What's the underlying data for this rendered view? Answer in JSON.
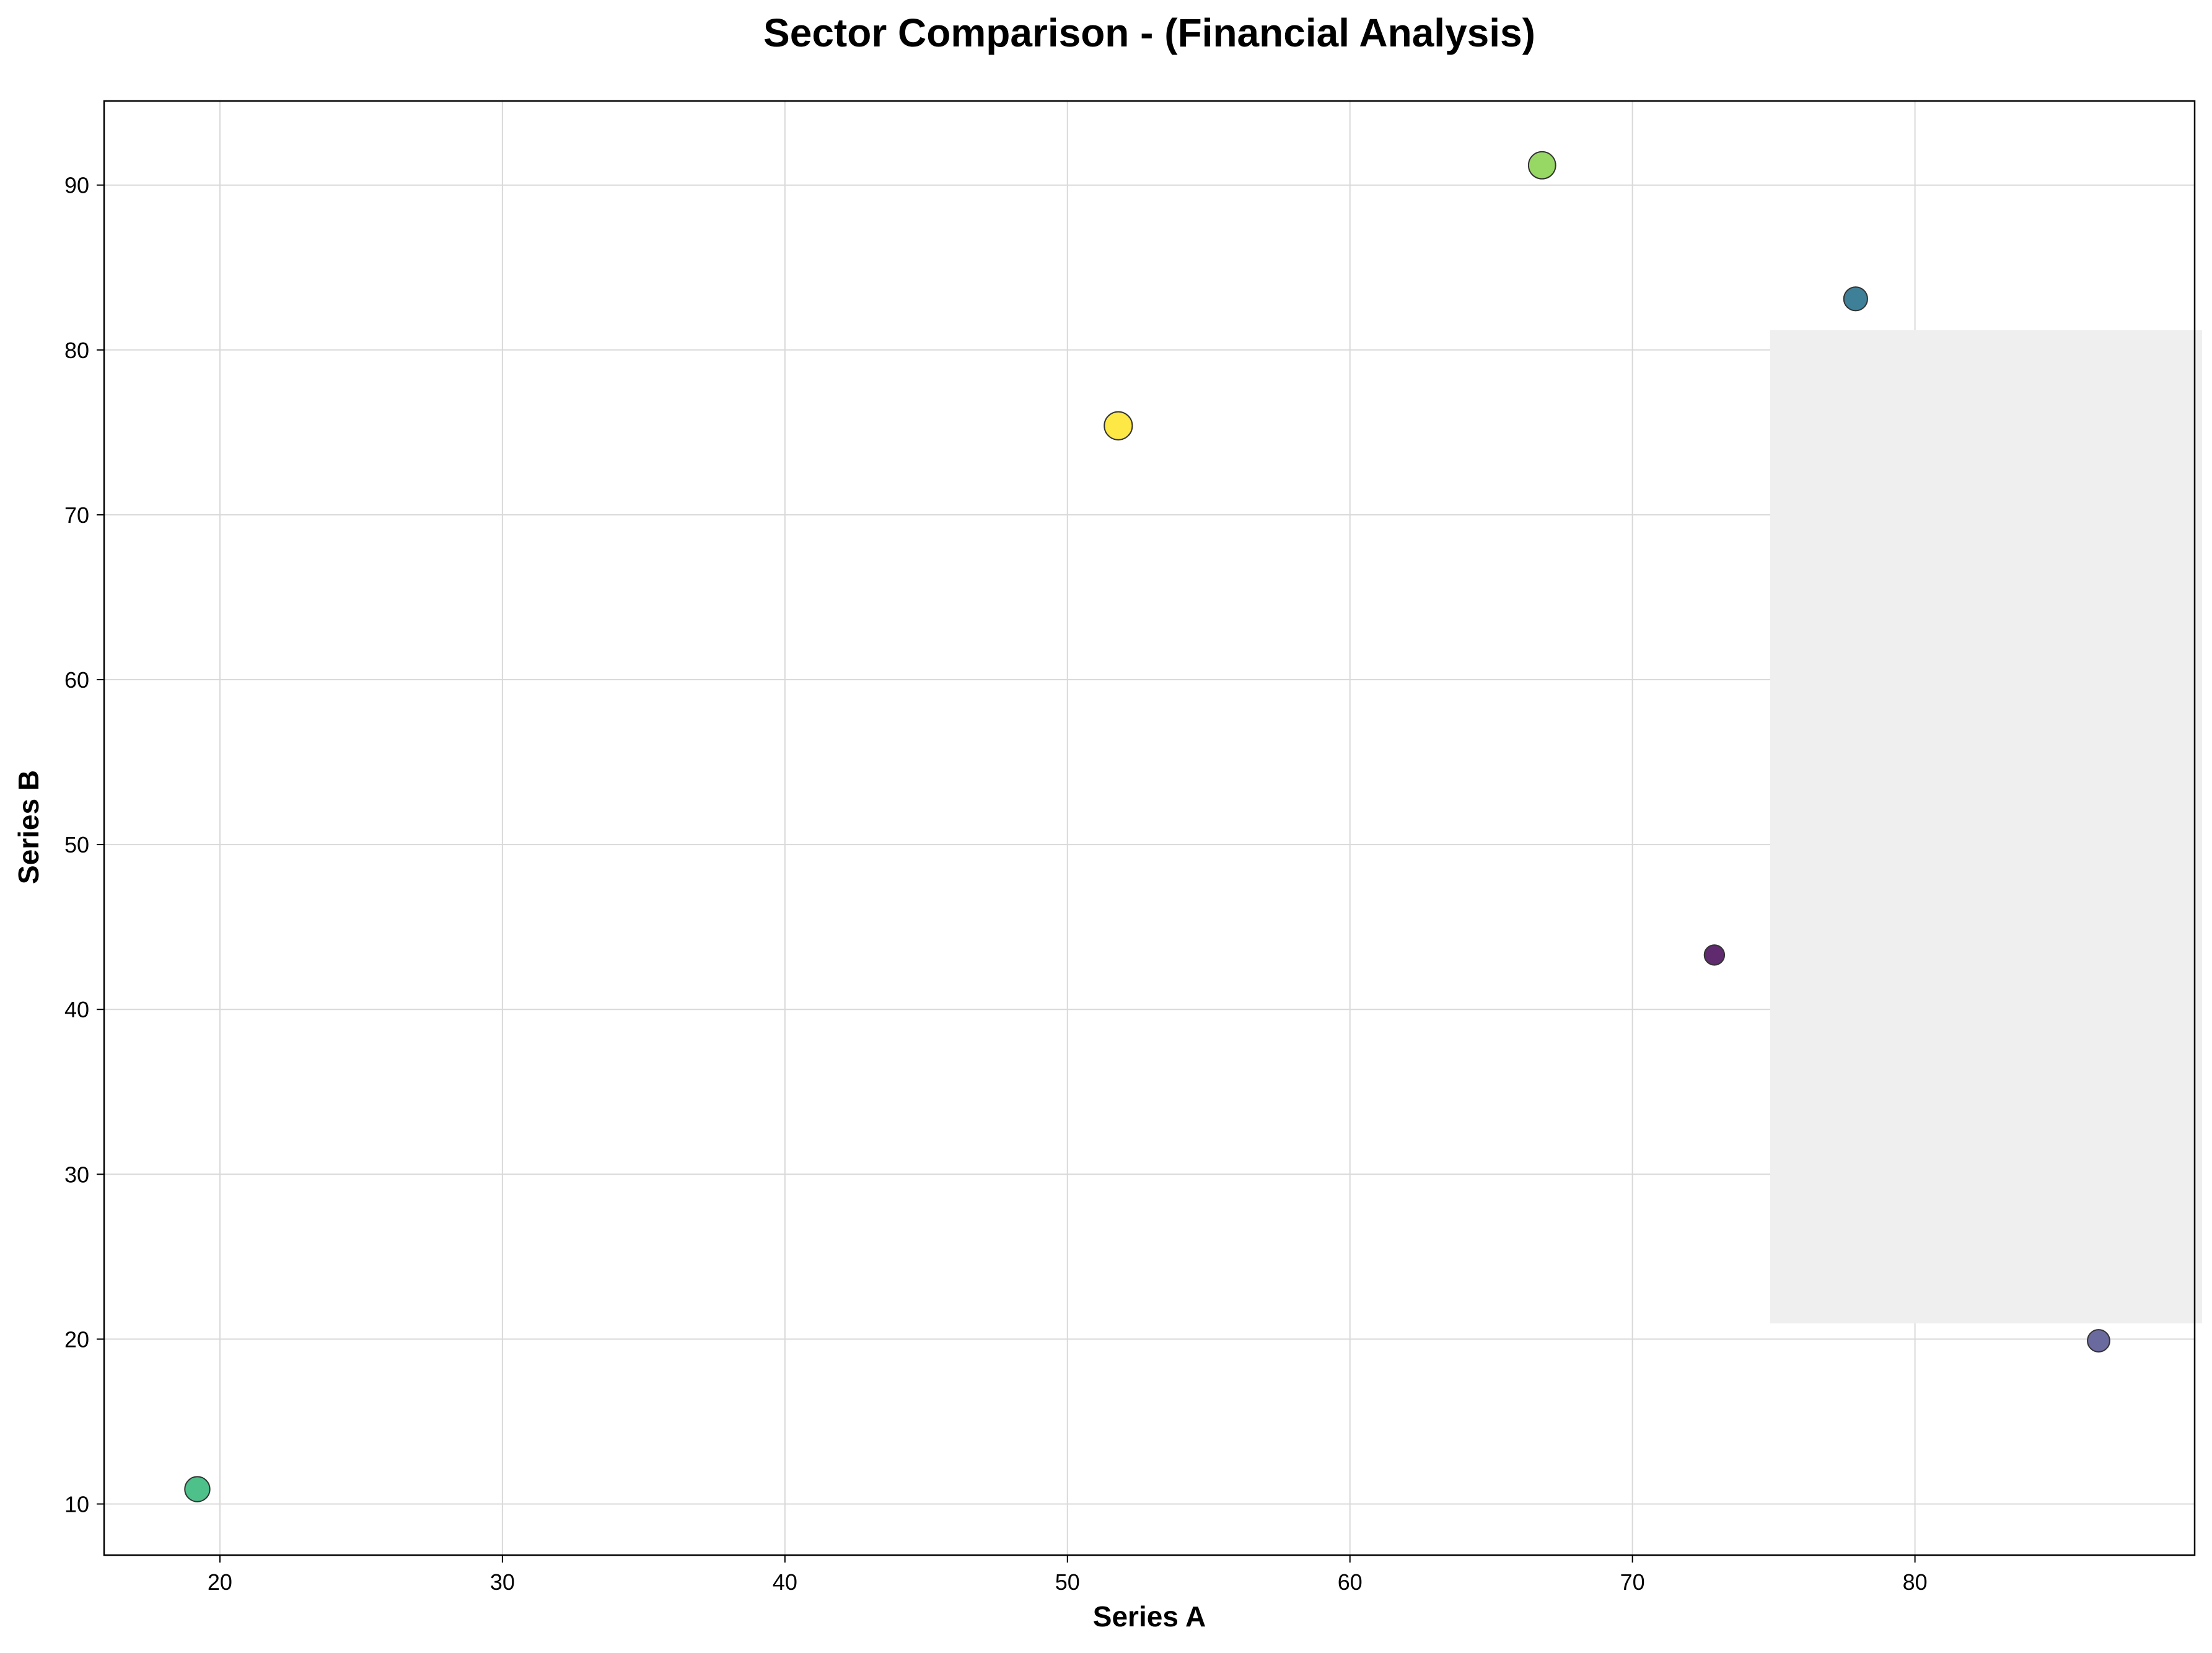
{
  "chart_data": {
    "type": "scatter",
    "title": "Sector Comparison - (Financial Analysis)",
    "xlabel": "Series A",
    "ylabel": "Series B",
    "xlim": [
      15.9,
      89.9
    ],
    "ylim": [
      6.9,
      95.1
    ],
    "xticks": [
      20,
      30,
      40,
      50,
      60,
      70,
      80
    ],
    "yticks": [
      10,
      20,
      30,
      40,
      50,
      60,
      70,
      80,
      90
    ],
    "grid": true,
    "legend": "none",
    "points": [
      {
        "x": 19.2,
        "y": 10.9,
        "size": 56,
        "color": "#4ec08a"
      },
      {
        "x": 51.8,
        "y": 75.4,
        "size": 70,
        "color": "#fde846"
      },
      {
        "x": 66.8,
        "y": 91.2,
        "size": 66,
        "color": "#97d764"
      },
      {
        "x": 77.9,
        "y": 83.1,
        "size": 50,
        "color": "#3e8098"
      },
      {
        "x": 72.9,
        "y": 43.3,
        "size": 36,
        "color": "#5f2a6e"
      },
      {
        "x": 86.5,
        "y": 19.9,
        "size": 44,
        "color": "#6b6a9e"
      }
    ]
  }
}
